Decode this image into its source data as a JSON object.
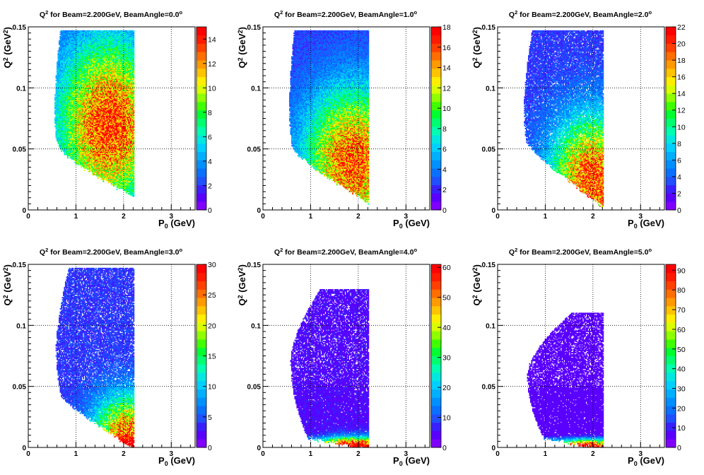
{
  "chart_data": [
    {
      "type": "heatmap",
      "title": "Q² for Beam=2.200GeV, BeamAngle=0.0°",
      "title_parts": [
        "Q",
        "2",
        " for Beam=2.200GeV, BeamAngle=0.0",
        "o"
      ],
      "xlabel": "P",
      "xlabel_sub": "0",
      "xlabel_unit": " (GeV)",
      "ylabel": "Q",
      "ylabel_sup": "2",
      "ylabel_unit": " (GeV",
      "ylabel_unit_sup": "2",
      "ylabel_close": ")",
      "xlim": [
        0,
        3.5
      ],
      "ylim": [
        0,
        0.15
      ],
      "xticks": [
        "0",
        "1",
        "2",
        "3"
      ],
      "yticks": [
        "0",
        "0.05",
        "0.1",
        "0.15"
      ],
      "zlim": [
        0,
        15
      ],
      "zticks": [
        "0",
        "2",
        "4",
        "6",
        "8",
        "10",
        "12",
        "14"
      ],
      "grid": true,
      "region": {
        "x_left_at_ymax": 0.67,
        "x_left_at_mid": 0.55,
        "x_right": 2.22,
        "y_max": 0.147,
        "y_min_at_xleft": 0.058,
        "y_min_at_xright": 0.013,
        "bottom_curve": 1.6
      },
      "peak": {
        "x": 1.7,
        "y": 0.07,
        "value": 14
      },
      "spread": {
        "x": 0.7,
        "y": 0.045
      },
      "floor_value": 2.5,
      "near_bottom_boost": 0,
      "holes": 0
    },
    {
      "type": "heatmap",
      "title": "Q² for Beam=2.200GeV, BeamAngle=1.0°",
      "title_parts": [
        "Q",
        "2",
        " for Beam=2.200GeV, BeamAngle=1.0",
        "o"
      ],
      "xlabel": "P",
      "xlabel_sub": "0",
      "xlabel_unit": " (GeV)",
      "ylabel": "Q",
      "ylabel_sup": "2",
      "ylabel_unit": " (GeV",
      "ylabel_unit_sup": "2",
      "ylabel_close": ")",
      "xlim": [
        0,
        3.5
      ],
      "ylim": [
        0,
        0.15
      ],
      "xticks": [
        "0",
        "1",
        "2",
        "3"
      ],
      "yticks": [
        "0",
        "0.05",
        "0.1",
        "0.15"
      ],
      "zlim": [
        0,
        18
      ],
      "zticks": [
        "0",
        "2",
        "4",
        "6",
        "8",
        "10",
        "12",
        "14",
        "16",
        "18"
      ],
      "grid": true,
      "region": {
        "x_left_at_ymax": 0.65,
        "x_left_at_mid": 0.55,
        "x_right": 2.22,
        "y_max": 0.147,
        "y_min_at_xleft": 0.055,
        "y_min_at_xright": 0.008,
        "bottom_curve": 1.5
      },
      "peak": {
        "x": 1.9,
        "y": 0.04,
        "value": 16
      },
      "spread": {
        "x": 0.7,
        "y": 0.04
      },
      "floor_value": 2.5,
      "near_bottom_boost": 0,
      "holes": 0
    },
    {
      "type": "heatmap",
      "title": "Q² for Beam=2.200GeV, BeamAngle=2.0°",
      "title_parts": [
        "Q",
        "2",
        " for Beam=2.200GeV, BeamAngle=2.0",
        "o"
      ],
      "xlabel": "P",
      "xlabel_sub": "0",
      "xlabel_unit": " (GeV)",
      "ylabel": "Q",
      "ylabel_sup": "2",
      "ylabel_unit": " (GeV",
      "ylabel_unit_sup": "2",
      "ylabel_close": ")",
      "xlim": [
        0,
        3.5
      ],
      "ylim": [
        0,
        0.15
      ],
      "xticks": [
        "0",
        "1",
        "2",
        "3"
      ],
      "yticks": [
        "0",
        "0.05",
        "0.1",
        "0.15"
      ],
      "zlim": [
        0,
        22
      ],
      "zticks": [
        "0",
        "2",
        "4",
        "6",
        "8",
        "10",
        "12",
        "14",
        "16",
        "18",
        "20",
        "22"
      ],
      "grid": true,
      "region": {
        "x_left_at_ymax": 0.72,
        "x_left_at_mid": 0.55,
        "x_right": 2.22,
        "y_max": 0.147,
        "y_min_at_xleft": 0.06,
        "y_min_at_xright": 0.004,
        "bottom_curve": 1.4
      },
      "peak": {
        "x": 2.0,
        "y": 0.025,
        "value": 20
      },
      "spread": {
        "x": 0.6,
        "y": 0.035
      },
      "floor_value": 3,
      "near_bottom_boost": 0,
      "holes": 0.06
    },
    {
      "type": "heatmap",
      "title": "Q² for Beam=2.200GeV, BeamAngle=3.0°",
      "title_parts": [
        "Q",
        "2",
        " for Beam=2.200GeV, BeamAngle=3.0",
        "o"
      ],
      "xlabel": "P",
      "xlabel_sub": "0",
      "xlabel_unit": " (GeV)",
      "ylabel": "Q",
      "ylabel_sup": "2",
      "ylabel_unit": " (GeV",
      "ylabel_unit_sup": "2",
      "ylabel_close": ")",
      "xlim": [
        0,
        3.5
      ],
      "ylim": [
        0,
        0.15
      ],
      "xticks": [
        "0",
        "1",
        "2",
        "3"
      ],
      "yticks": [
        "0",
        "0.05",
        "0.1",
        "0.15"
      ],
      "zlim": [
        0,
        30
      ],
      "zticks": [
        "0",
        "5",
        "10",
        "15",
        "20",
        "25",
        "30"
      ],
      "grid": true,
      "region": {
        "x_left_at_ymax": 0.85,
        "x_left_at_mid": 0.58,
        "x_right": 2.22,
        "y_max": 0.147,
        "y_min_at_xleft": 0.045,
        "y_min_at_xright": 0.0,
        "bottom_curve": 1.3
      },
      "peak": {
        "x": 2.1,
        "y": 0.005,
        "value": 28
      },
      "spread": {
        "x": 0.5,
        "y": 0.025
      },
      "floor_value": 4,
      "near_bottom_boost": 6,
      "holes": 0.1
    },
    {
      "type": "heatmap",
      "title": "Q² for Beam=2.200GeV, BeamAngle=4.0°",
      "title_parts": [
        "Q",
        "2",
        " for Beam=2.200GeV, BeamAngle=4.0",
        "o"
      ],
      "xlabel": "P",
      "xlabel_sub": "0",
      "xlabel_unit": " (GeV)",
      "ylabel": "Q",
      "ylabel_sup": "2",
      "ylabel_unit": " (GeV",
      "ylabel_unit_sup": "2",
      "ylabel_close": ")",
      "xlim": [
        0,
        3.5
      ],
      "ylim": [
        0,
        0.15
      ],
      "xticks": [
        "0",
        "1",
        "2",
        "3"
      ],
      "yticks": [
        "0",
        "0.05",
        "0.1",
        "0.15"
      ],
      "zlim": [
        0,
        61
      ],
      "zticks": [
        "0",
        "10",
        "20",
        "30",
        "40",
        "50",
        "60"
      ],
      "grid": true,
      "region": {
        "x_left_at_ymax": 1.2,
        "x_left_at_mid": 0.58,
        "x_right": 2.22,
        "y_max": 0.13,
        "y_min_at_xleft": 0.01,
        "y_min_at_xright": 0.0,
        "bottom_curve": 1.0
      },
      "peak": {
        "x": 1.9,
        "y": 0.0,
        "value": 55
      },
      "spread": {
        "x": 0.45,
        "y": 0.006
      },
      "floor_value": 5,
      "near_bottom_boost": 4,
      "holes": 0.12
    },
    {
      "type": "heatmap",
      "title": "Q² for Beam=2.200GeV, BeamAngle=5.0°",
      "title_parts": [
        "Q",
        "2",
        " for Beam=2.200GeV, BeamAngle=5.0",
        "o"
      ],
      "xlabel": "P",
      "xlabel_sub": "0",
      "xlabel_unit": " (GeV)",
      "ylabel": "Q",
      "ylabel_sup": "2",
      "ylabel_unit": " (GeV",
      "ylabel_unit_sup": "2",
      "ylabel_close": ")",
      "xlim": [
        0,
        3.5
      ],
      "ylim": [
        0,
        0.15
      ],
      "xticks": [
        "0",
        "1",
        "2",
        "3"
      ],
      "yticks": [
        "0",
        "0.05",
        "0.1",
        "0.15"
      ],
      "zlim": [
        0,
        93
      ],
      "zticks": [
        "0",
        "10",
        "20",
        "30",
        "40",
        "50",
        "60",
        "70",
        "80",
        "90"
      ],
      "grid": true,
      "region": {
        "x_left_at_ymax": 1.55,
        "x_left_at_mid": 0.62,
        "x_right": 2.22,
        "y_max": 0.11,
        "y_min_at_xleft": 0.01,
        "y_min_at_xright": 0.0,
        "bottom_curve": 1.0
      },
      "peak": {
        "x": 1.9,
        "y": 0.0,
        "value": 80
      },
      "spread": {
        "x": 0.4,
        "y": 0.004
      },
      "floor_value": 6,
      "near_bottom_boost": 4,
      "holes": 0.14
    }
  ],
  "palette": [
    "#7f00ff",
    "#5a00ff",
    "#3a20ff",
    "#2050ff",
    "#0a70ff",
    "#0090ff",
    "#00b0ff",
    "#00d0ff",
    "#00e8e0",
    "#00ffb0",
    "#00ff70",
    "#00ff30",
    "#40ff00",
    "#90ff00",
    "#d8ff00",
    "#ffee00",
    "#ffc400",
    "#ff9a00",
    "#ff6e00",
    "#ff4000",
    "#ff1a00",
    "#ff0000"
  ]
}
